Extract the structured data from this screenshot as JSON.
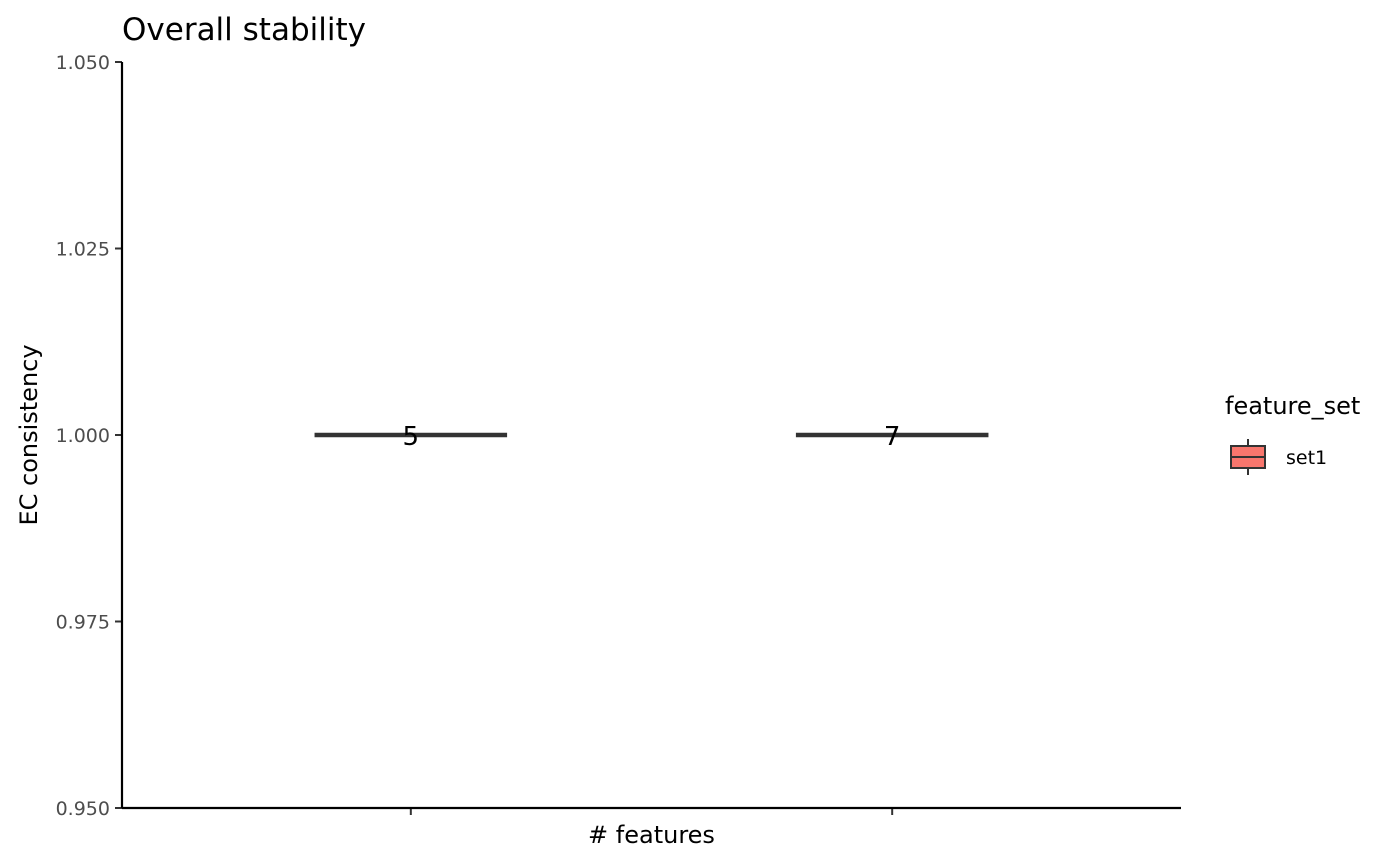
{
  "chart_data": {
    "type": "boxplot",
    "title": "Overall stability",
    "xlabel": "# features",
    "ylabel": "EC consistency",
    "ylim": [
      0.95,
      1.05
    ],
    "yticks": [
      "0.950",
      "0.975",
      "1.000",
      "1.025",
      "1.050"
    ],
    "ytick_values": [
      0.95,
      0.975,
      1.0,
      1.025,
      1.05
    ],
    "categories": [
      "5",
      "7"
    ],
    "series": [
      {
        "name": "set1",
        "color": "#F8766D",
        "values": [
          1.0,
          1.0
        ],
        "labels": [
          "5",
          "7"
        ]
      }
    ],
    "grid": false,
    "legend": {
      "title": "feature_set",
      "position": "right",
      "entries": [
        "set1"
      ]
    }
  }
}
